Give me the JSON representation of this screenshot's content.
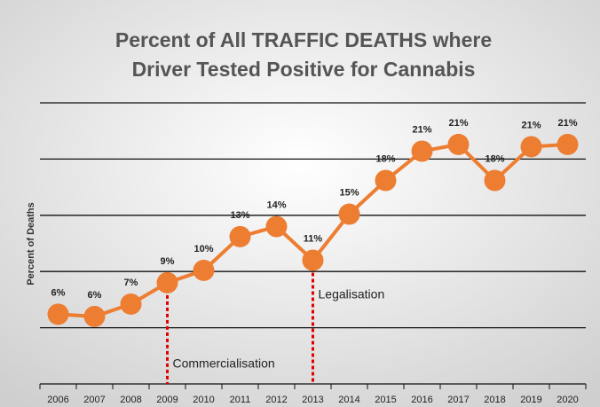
{
  "chart_data": {
    "type": "line",
    "title": [
      "Percent of All TRAFFIC DEATHS where",
      "Driver Tested Positive for Cannabis"
    ],
    "y_label": "Percent of Deaths",
    "categories": [
      "2006",
      "2007",
      "2008",
      "2009",
      "2010",
      "2011",
      "2012",
      "2013",
      "2014",
      "2015",
      "2016",
      "2017",
      "2018",
      "2019",
      "2020"
    ],
    "values": [
      6.2,
      6.0,
      7.1,
      9.0,
      10.1,
      13.1,
      14.0,
      11.0,
      15.1,
      18.1,
      20.7,
      21.3,
      18.1,
      21.1,
      21.3
    ],
    "value_labels": [
      "6%",
      "6%",
      "7%",
      "9%",
      "10%",
      "13%",
      "14%",
      "11%",
      "15%",
      "18%",
      "21%",
      "21%",
      "18%",
      "21%",
      "21%"
    ],
    "color": "#ed7d31",
    "ylim": [
      0,
      25
    ],
    "yticks": [
      0,
      5,
      10,
      15,
      20,
      25
    ],
    "grid": true,
    "annotations": [
      {
        "text": "Commercialisation",
        "category": "2009"
      },
      {
        "text": "Legalisation",
        "category": "2013"
      }
    ]
  }
}
